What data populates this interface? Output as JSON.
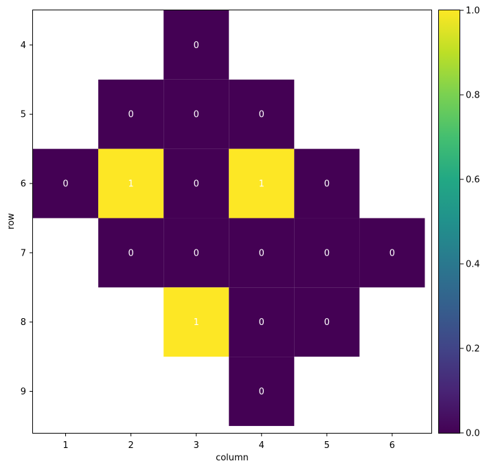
{
  "chart_data": {
    "type": "heatmap",
    "title": "",
    "xlabel": "column",
    "ylabel": "row",
    "x_ticks": [
      1,
      2,
      3,
      4,
      5,
      6
    ],
    "y_ticks": [
      4,
      5,
      6,
      7,
      8,
      9
    ],
    "xlim": [
      0.5,
      6.6
    ],
    "ylim": [
      3.5,
      9.6
    ],
    "colormap": "viridis",
    "colorbar": {
      "range": [
        0.0,
        1.0
      ],
      "ticks": [
        "0.0",
        "0.2",
        "0.4",
        "0.6",
        "0.8",
        "1.0"
      ]
    },
    "colors": {
      "low": "#440154",
      "high": "#fde725"
    },
    "grid": false,
    "cells": [
      {
        "row": 4,
        "col": 3,
        "value": 0
      },
      {
        "row": 5,
        "col": 2,
        "value": 0
      },
      {
        "row": 5,
        "col": 3,
        "value": 0
      },
      {
        "row": 5,
        "col": 4,
        "value": 0
      },
      {
        "row": 6,
        "col": 1,
        "value": 0
      },
      {
        "row": 6,
        "col": 2,
        "value": 1
      },
      {
        "row": 6,
        "col": 3,
        "value": 0
      },
      {
        "row": 6,
        "col": 4,
        "value": 1
      },
      {
        "row": 6,
        "col": 5,
        "value": 0
      },
      {
        "row": 7,
        "col": 2,
        "value": 0
      },
      {
        "row": 7,
        "col": 3,
        "value": 0
      },
      {
        "row": 7,
        "col": 4,
        "value": 0
      },
      {
        "row": 7,
        "col": 5,
        "value": 0
      },
      {
        "row": 7,
        "col": 6,
        "value": 0
      },
      {
        "row": 8,
        "col": 3,
        "value": 1
      },
      {
        "row": 8,
        "col": 4,
        "value": 0
      },
      {
        "row": 8,
        "col": 5,
        "value": 0
      },
      {
        "row": 9,
        "col": 4,
        "value": 0
      }
    ]
  }
}
